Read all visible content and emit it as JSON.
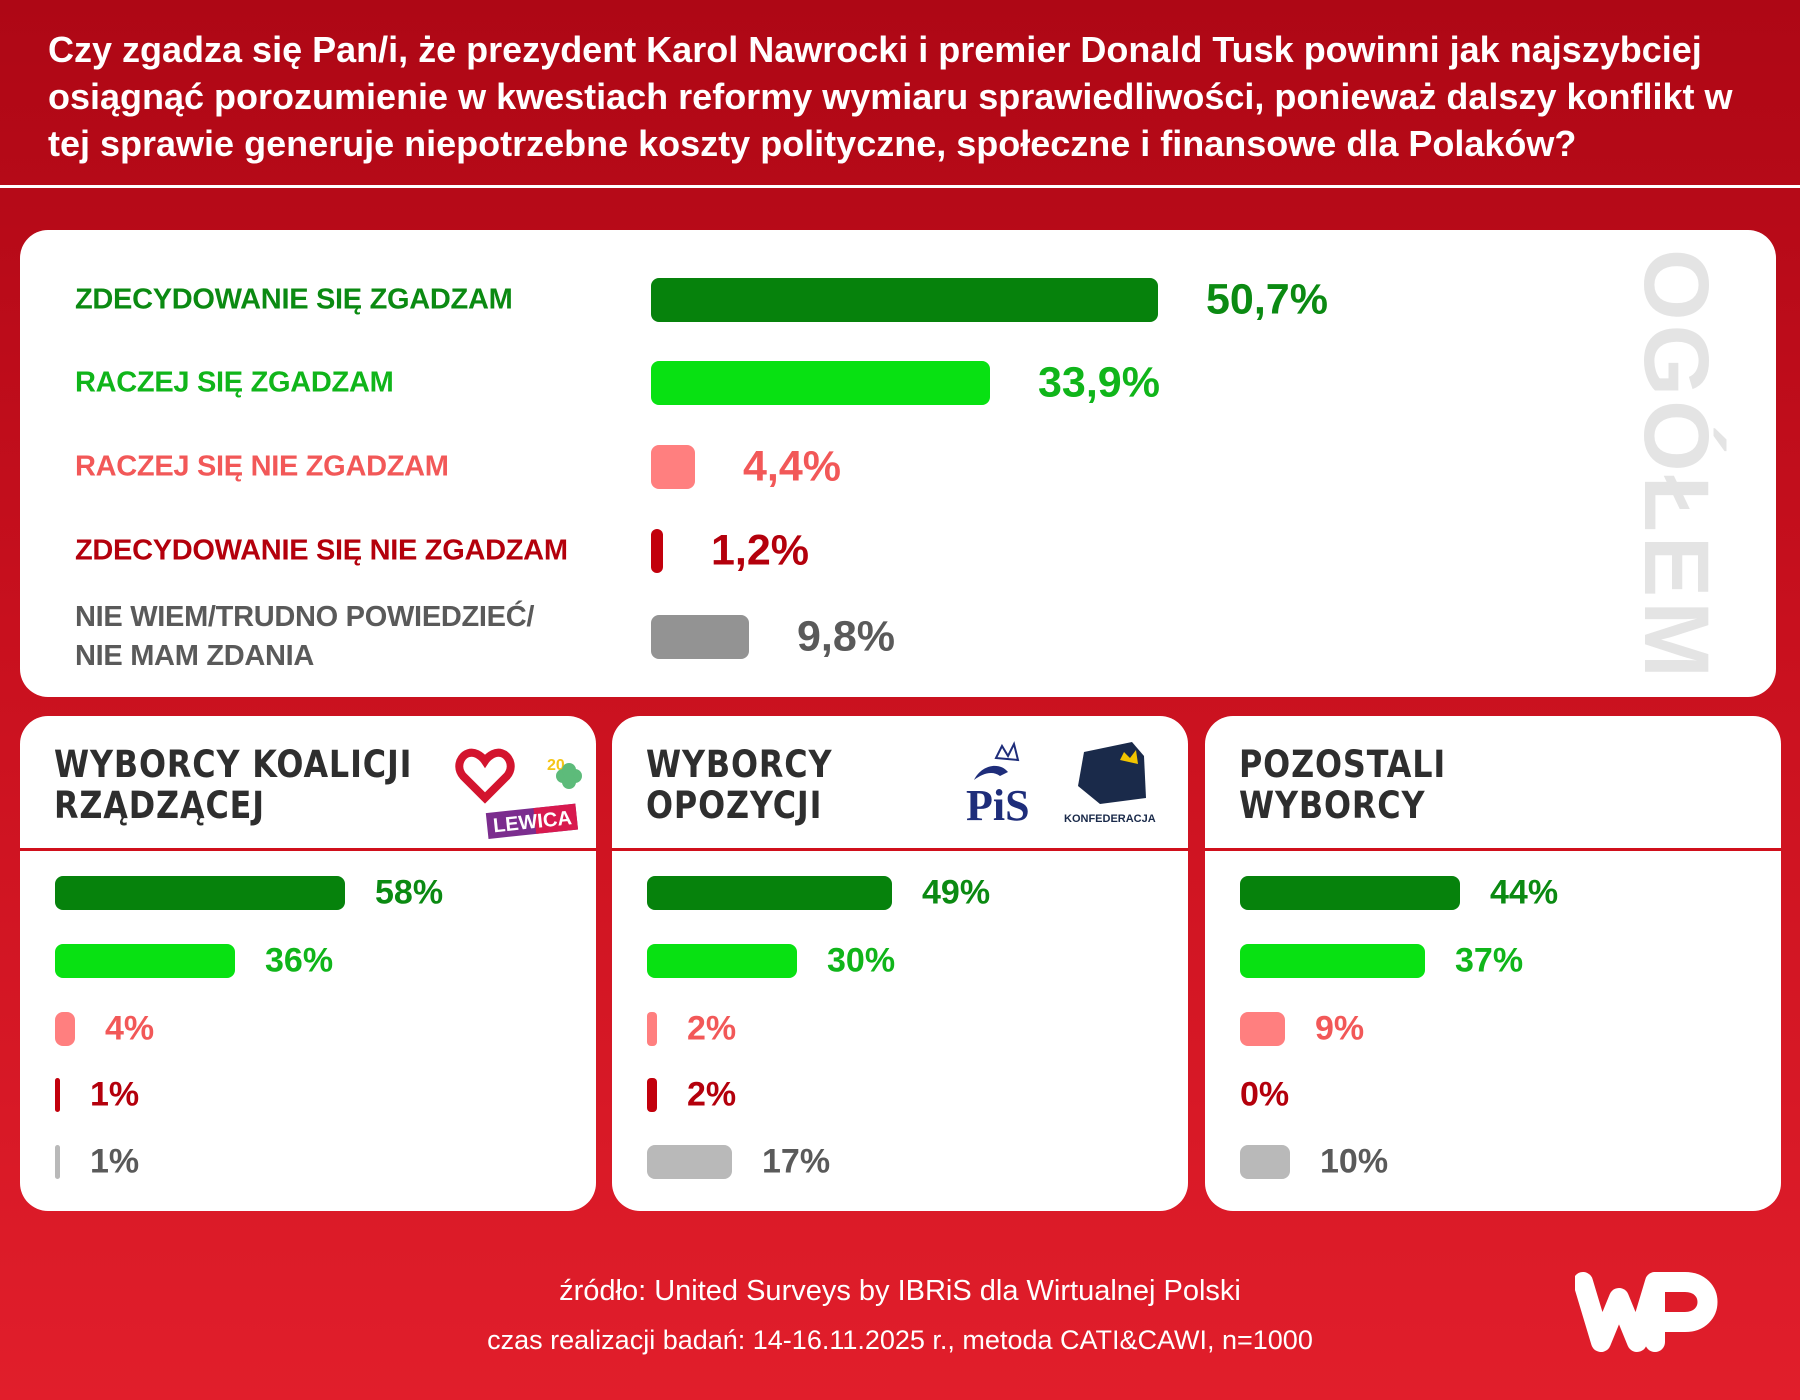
{
  "header": {
    "title": "Czy zgadza się Pan/i, że prezydent Karol Nawrocki i premier Donald Tusk powinni jak najszybciej osiągnąć porozumienie w kwestiach reformy wymiaru sprawiedliwości, ponieważ dalszy konflikt w tej sprawie generuje niepotrzebne koszty polityczne, społeczne i finansowe dla Polaków?"
  },
  "chart_data": [
    {
      "type": "bar",
      "orientation": "horizontal",
      "title": "OGÓŁEM",
      "categories": [
        "ZDECYDOWANIE SIĘ ZGADZAM",
        "RACZEJ SIĘ ZGADZAM",
        "RACZEJ SIĘ NIE ZGADZAM",
        "ZDECYDOWANIE SIĘ NIE ZGADZAM",
        "NIE WIEM/TRUDNO POWIEDZIEĆ/ NIE MAM ZDANIA"
      ],
      "values": [
        50.7,
        33.9,
        4.4,
        1.2,
        9.8
      ],
      "labels": [
        "50,7%",
        "33,9%",
        "4,4%",
        "1,2%",
        "9,8%"
      ],
      "bar_colors": [
        "#06820c",
        "#08e112",
        "#ff7f7f",
        "#c2000c",
        "#939393"
      ],
      "text_colors": [
        "#0b8a12",
        "#10b51a",
        "#f25858",
        "#b4000c",
        "#5a5a5a"
      ]
    },
    {
      "type": "bar",
      "orientation": "horizontal",
      "title": "WYBORCY KOALICJI RZĄDZĄCEJ",
      "values": [
        58,
        36,
        4,
        1,
        1
      ],
      "labels": [
        "58%",
        "36%",
        "4%",
        "1%",
        "1%"
      ]
    },
    {
      "type": "bar",
      "orientation": "horizontal",
      "title": "WYBORCY OPOZYCJI",
      "values": [
        49,
        30,
        2,
        2,
        17
      ],
      "labels": [
        "49%",
        "30%",
        "2%",
        "2%",
        "17%"
      ]
    },
    {
      "type": "bar",
      "orientation": "horizontal",
      "title": "POZOSTALI WYBORCY",
      "values": [
        44,
        37,
        9,
        0,
        10
      ],
      "labels": [
        "44%",
        "37%",
        "9%",
        "0%",
        "10%"
      ]
    }
  ],
  "sub_colors": {
    "bars": [
      "#06820c",
      "#08e112",
      "#ff7f7f",
      "#c2000c",
      "#b9b9b9"
    ],
    "text": [
      "#0b8a12",
      "#10b51a",
      "#f25858",
      "#b4000c",
      "#5a5a5a"
    ]
  },
  "logos": {
    "lewica": "LEWICA",
    "pis": "PiS",
    "konfederacja": "KONFEDERACJA",
    "wp": "WP"
  },
  "footer": {
    "source": "źródło: United Surveys by IBRiS dla Wirtualnej Polski",
    "method": "czas realizacji badań: 14-16.11.2025 r., metoda CATI&CAWI, n=1000"
  }
}
